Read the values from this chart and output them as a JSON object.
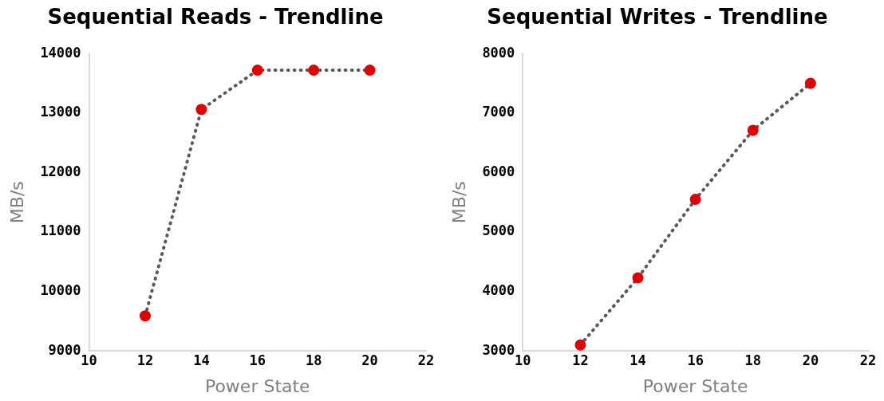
{
  "chart_data": [
    {
      "type": "scatter",
      "title": "Sequential Reads - Trendline",
      "xlabel": "Power State",
      "ylabel": "MB/s",
      "x": [
        12,
        14,
        16,
        18,
        20
      ],
      "xlim": [
        10,
        22
      ],
      "xticks": [
        10,
        12,
        14,
        16,
        18,
        20,
        22
      ],
      "ylim": [
        9000,
        14000
      ],
      "yticks": [
        9000,
        10000,
        11000,
        12000,
        13000,
        14000
      ],
      "series": [
        {
          "type": "line",
          "color": "#595959",
          "line_style": "dotted",
          "marker": "none",
          "values": [
            9590,
            13060,
            13720,
            13720,
            13720
          ]
        },
        {
          "type": "scatter",
          "color": "#e00000",
          "marker": "circle",
          "values": [
            9590,
            13060,
            13720,
            13720,
            13720
          ]
        }
      ]
    },
    {
      "type": "scatter",
      "title": "Sequential Writes - Trendline",
      "xlabel": "Power State",
      "ylabel": "MB/s",
      "x": [
        12,
        14,
        16,
        18,
        20
      ],
      "xlim": [
        10,
        22
      ],
      "xticks": [
        10,
        12,
        14,
        16,
        18,
        20,
        22
      ],
      "ylim": [
        3000,
        8000
      ],
      "yticks": [
        3000,
        4000,
        5000,
        6000,
        7000,
        8000
      ],
      "series": [
        {
          "type": "line",
          "color": "#595959",
          "line_style": "dotted",
          "marker": "none",
          "values": [
            3100,
            4230,
            5550,
            6710,
            7500
          ]
        },
        {
          "type": "scatter",
          "color": "#e00000",
          "marker": "circle",
          "values": [
            3100,
            4230,
            5550,
            6710,
            7500
          ]
        }
      ]
    }
  ]
}
